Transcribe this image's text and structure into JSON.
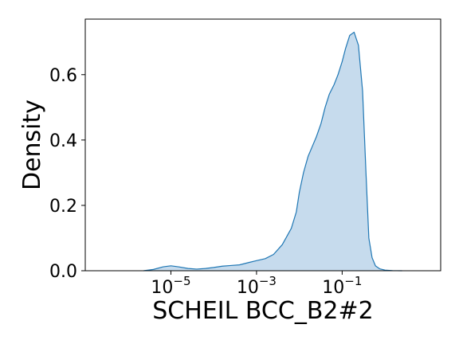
{
  "chart_data": {
    "type": "area",
    "title": "",
    "xlabel": "SCHEIL BCC_B2#2",
    "ylabel": "Density",
    "x_scale": "log",
    "xlim": [
      1e-07,
      20
    ],
    "ylim": [
      0,
      0.77
    ],
    "x_ticks": [
      {
        "value": 1e-05,
        "base": "10",
        "exp": "−5"
      },
      {
        "value": 0.001,
        "base": "10",
        "exp": "−3"
      },
      {
        "value": 0.1,
        "base": "10",
        "exp": "−1"
      }
    ],
    "y_ticks": [
      {
        "value": 0.0,
        "label": "0.0"
      },
      {
        "value": 0.2,
        "label": "0.2"
      },
      {
        "value": 0.4,
        "label": "0.4"
      },
      {
        "value": 0.6,
        "label": "0.6"
      }
    ],
    "grid": false,
    "series": [
      {
        "fill_color": "#c6dbed",
        "line_color": "#1f77b4",
        "x": [
          2.3e-06,
          3.9e-06,
          6.6e-06,
          1e-05,
          1.5e-05,
          2.5e-05,
          4e-05,
          6.5e-05,
          0.0001,
          0.00016,
          0.00025,
          0.0004,
          0.00065,
          0.001,
          0.0016,
          0.0025,
          0.004,
          0.0065,
          0.0085,
          0.01,
          0.0125,
          0.016,
          0.02,
          0.025,
          0.032,
          0.04,
          0.05,
          0.065,
          0.08,
          0.1,
          0.12,
          0.15,
          0.19,
          0.24,
          0.3,
          0.36,
          0.42,
          0.5,
          0.6,
          0.75,
          1.0,
          1.5,
          2.5
        ],
        "y": [
          0.0,
          0.004,
          0.012,
          0.015,
          0.012,
          0.007,
          0.005,
          0.007,
          0.01,
          0.014,
          0.016,
          0.018,
          0.025,
          0.031,
          0.037,
          0.05,
          0.08,
          0.13,
          0.18,
          0.24,
          0.3,
          0.35,
          0.38,
          0.41,
          0.45,
          0.5,
          0.54,
          0.57,
          0.6,
          0.64,
          0.68,
          0.72,
          0.73,
          0.69,
          0.55,
          0.3,
          0.1,
          0.04,
          0.015,
          0.006,
          0.002,
          0.0005,
          0.0
        ]
      }
    ]
  }
}
